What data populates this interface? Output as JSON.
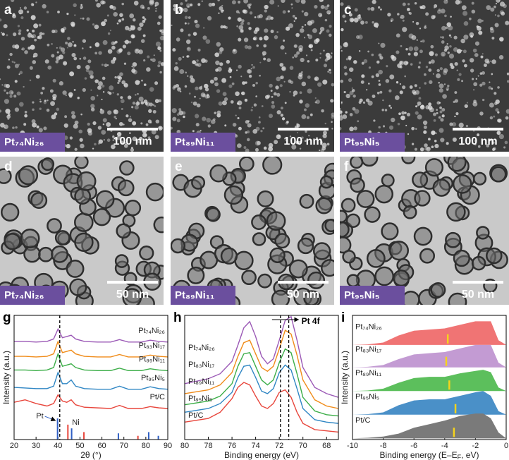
{
  "image_panels": [
    {
      "letter": "a",
      "sample": "Pt₇₄Ni₂₆",
      "scale": "100 nm"
    },
    {
      "letter": "b",
      "sample": "Pt₈₉Ni₁₁",
      "scale": "100 nm"
    },
    {
      "letter": "c",
      "sample": "Pt₉₅Ni₅",
      "scale": "100 nm"
    },
    {
      "letter": "d",
      "sample": "Pt₇₄Ni₂₆",
      "scale": "50 nm"
    },
    {
      "letter": "e",
      "sample": "Pt₈₉Ni₁₁",
      "scale": "50 nm"
    },
    {
      "letter": "f",
      "sample": "Pt₉₅Ni₅",
      "scale": "50 nm"
    }
  ],
  "chart_data": [
    {
      "type": "line",
      "panel": "g",
      "xlabel": "2θ (°)",
      "ylabel": "Intensity (a.u.)",
      "xlim": [
        20,
        90
      ],
      "xticks": [
        20,
        30,
        40,
        50,
        60,
        70,
        80,
        90
      ],
      "ylim": [
        0,
        10
      ],
      "dashed_lines": [
        40.8
      ],
      "x": [
        20,
        25,
        30,
        35,
        38,
        40,
        42,
        44,
        46,
        48,
        52,
        58,
        64,
        68,
        72,
        78,
        82,
        86,
        90
      ],
      "series": [
        {
          "name": "Pt₇₄Ni₂₆",
          "color": "#9b59b6",
          "values": [
            7.9,
            7.9,
            7.85,
            7.9,
            8.1,
            8.9,
            8.2,
            8.3,
            8.4,
            8.1,
            7.9,
            7.85,
            7.85,
            8.05,
            7.85,
            7.85,
            8.0,
            7.9,
            7.85
          ]
        },
        {
          "name": "Pt₈₃Ni₁₇",
          "color": "#f08c1a",
          "values": [
            6.7,
            6.7,
            6.65,
            6.7,
            6.9,
            7.9,
            7.0,
            7.1,
            7.2,
            6.9,
            6.7,
            6.65,
            6.65,
            6.85,
            6.65,
            6.65,
            6.8,
            6.7,
            6.65
          ]
        },
        {
          "name": "Pt₈₉Ni₁₁",
          "color": "#3cae48",
          "values": [
            5.6,
            5.6,
            5.55,
            5.6,
            5.8,
            6.9,
            5.9,
            6.0,
            6.1,
            5.8,
            5.6,
            5.55,
            5.55,
            5.75,
            5.55,
            5.55,
            5.7,
            5.6,
            5.55
          ]
        },
        {
          "name": "Pt₉₅Ni₅",
          "color": "#2f86c4",
          "values": [
            4.2,
            4.15,
            4.1,
            4.1,
            4.3,
            5.4,
            4.5,
            4.5,
            4.8,
            4.3,
            4.1,
            4.05,
            4.05,
            4.3,
            4.05,
            4.05,
            4.25,
            4.1,
            4.05
          ]
        },
        {
          "name": "Pt/C",
          "color": "#e8463c",
          "values": [
            3.0,
            3.2,
            2.9,
            2.7,
            2.9,
            3.6,
            3.1,
            3.0,
            3.2,
            2.8,
            2.6,
            2.55,
            2.5,
            2.75,
            2.5,
            2.5,
            2.65,
            2.55,
            2.5
          ]
        }
      ],
      "reference_lines": [
        {
          "name": "Pt",
          "color": "#2f5fc4",
          "x": [
            39.8,
            46.2,
            67.5,
            81.3,
            85.7
          ],
          "values": [
            1.7,
            0.9,
            0.5,
            0.6,
            0.3
          ]
        },
        {
          "name": "Ni",
          "color": "#e8463c",
          "x": [
            44.5,
            51.8,
            76.4
          ],
          "values": [
            1.2,
            0.6,
            0.3
          ]
        }
      ]
    },
    {
      "type": "line",
      "panel": "h",
      "xlabel": "Binding energy (eV)",
      "annotation": "Pt 4f",
      "xlim": [
        80,
        67
      ],
      "xticks": [
        80,
        78,
        76,
        74,
        72,
        70,
        68
      ],
      "ylim": [
        0,
        10
      ],
      "dashed_lines": [
        71.9,
        71.2
      ],
      "x": [
        80,
        78,
        77,
        76,
        75.5,
        75,
        74.5,
        74,
        73.5,
        73,
        72.5,
        72,
        71.5,
        71,
        70.5,
        70,
        69,
        68,
        67
      ],
      "series": [
        {
          "name": "Pt₇₄Ni₂₆",
          "color": "#9b59b6",
          "values": [
            4.5,
            4.9,
            5.3,
            6.3,
            7.6,
            9.0,
            9.5,
            8.3,
            6.7,
            6.1,
            6.5,
            8.0,
            9.6,
            9.9,
            8.0,
            5.8,
            4.2,
            3.7,
            3.4
          ]
        },
        {
          "name": "Pt₈₃Ni₁₇",
          "color": "#f08c1a",
          "values": [
            3.7,
            4.0,
            4.4,
            5.4,
            6.7,
            7.8,
            8.0,
            6.9,
            5.8,
            5.5,
            5.9,
            7.3,
            8.8,
            8.5,
            6.8,
            4.8,
            3.2,
            2.7,
            2.5
          ]
        },
        {
          "name": "Pt₈₉Ni₁₁",
          "color": "#3cae48",
          "values": [
            2.8,
            3.1,
            3.5,
            4.5,
            5.9,
            6.9,
            7.0,
            5.9,
            4.8,
            4.4,
            4.8,
            6.2,
            7.3,
            7.0,
            5.3,
            3.4,
            2.3,
            2.0,
            1.9
          ]
        },
        {
          "name": "Pt₉₅Ni₅",
          "color": "#2f86c4",
          "values": [
            2.2,
            2.5,
            2.9,
            3.8,
            5.0,
            5.9,
            6.0,
            5.0,
            3.9,
            3.7,
            4.1,
            5.4,
            6.0,
            5.6,
            4.1,
            2.5,
            1.6,
            1.4,
            1.3
          ]
        },
        {
          "name": "Pt/C",
          "color": "#e8463c",
          "values": [
            1.4,
            1.7,
            2.2,
            3.3,
            4.2,
            4.6,
            4.4,
            3.5,
            2.7,
            2.5,
            2.9,
            3.8,
            4.0,
            3.4,
            2.2,
            1.3,
            0.8,
            0.7,
            0.6
          ]
        }
      ]
    },
    {
      "type": "area",
      "panel": "i",
      "xlabel": "Binding energy (E–E",
      "xlabel_subscript": "F",
      "xlabel_tail": ", eV)",
      "ylabel": "Intensity (a.u.)",
      "xlim": [
        -10,
        0
      ],
      "xticks": [
        -10,
        -8,
        -6,
        -4,
        -2,
        0
      ],
      "ylim": [
        0,
        10.5
      ],
      "marker_color": "#f5d31c",
      "x": [
        -10,
        -9,
        -8,
        -7,
        -6,
        -5,
        -4,
        -3,
        -2,
        -1.5,
        -1,
        -0.5,
        0
      ],
      "series": [
        {
          "name": "Pt₇₄Ni₂₆",
          "color": "#f07474",
          "baseline": 8.0,
          "d_band_center": -3.8,
          "values": [
            0,
            0.05,
            0.2,
            0.8,
            1.2,
            1.3,
            1.4,
            1.7,
            2.0,
            2.0,
            2.0,
            0.4,
            0
          ]
        },
        {
          "name": "Pt₈₃Ni₁₇",
          "color": "#c39bd3",
          "baseline": 6.1,
          "d_band_center": -3.9,
          "values": [
            0,
            0.05,
            0.2,
            0.7,
            1.1,
            1.2,
            1.3,
            1.6,
            1.9,
            1.9,
            1.9,
            0.4,
            0
          ]
        },
        {
          "name": "Pt₈₉Ni₁₁",
          "color": "#5cbf5c",
          "baseline": 4.1,
          "d_band_center": -3.7,
          "values": [
            0,
            0.05,
            0.2,
            0.7,
            1.1,
            1.2,
            1.2,
            1.5,
            1.7,
            1.8,
            1.6,
            0.3,
            0
          ]
        },
        {
          "name": "Pt₉₅Ni₅",
          "color": "#4a90c8",
          "baseline": 2.1,
          "d_band_center": -3.3,
          "values": [
            0,
            0.05,
            0.2,
            0.8,
            1.2,
            1.3,
            1.3,
            1.6,
            1.9,
            2.0,
            1.6,
            0.3,
            0
          ]
        },
        {
          "name": "Pt/C",
          "color": "#7a7a7a",
          "baseline": 0.1,
          "d_band_center": -3.4,
          "values": [
            0,
            0.05,
            0.15,
            0.4,
            0.9,
            1.2,
            1.5,
            1.9,
            2.1,
            2.1,
            1.7,
            0.5,
            0
          ]
        }
      ]
    }
  ]
}
